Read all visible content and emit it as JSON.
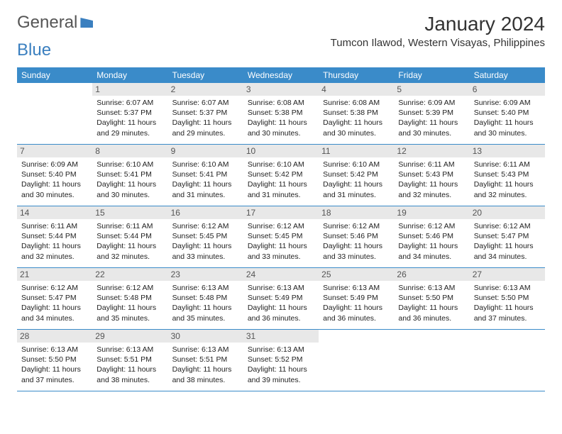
{
  "logo": {
    "part1": "General",
    "part2": "Blue"
  },
  "title": "January 2024",
  "location": "Tumcon Ilawod, Western Visayas, Philippines",
  "colors": {
    "header_bg": "#3a8bc9",
    "header_text": "#ffffff",
    "daynum_bg": "#e8e8e8",
    "border": "#3a8bc9",
    "logo_accent": "#3a7fbf"
  },
  "day_names": [
    "Sunday",
    "Monday",
    "Tuesday",
    "Wednesday",
    "Thursday",
    "Friday",
    "Saturday"
  ],
  "weeks": [
    [
      {
        "num": "",
        "lines": [
          "",
          "",
          "",
          ""
        ]
      },
      {
        "num": "1",
        "lines": [
          "Sunrise: 6:07 AM",
          "Sunset: 5:37 PM",
          "Daylight: 11 hours",
          "and 29 minutes."
        ]
      },
      {
        "num": "2",
        "lines": [
          "Sunrise: 6:07 AM",
          "Sunset: 5:37 PM",
          "Daylight: 11 hours",
          "and 29 minutes."
        ]
      },
      {
        "num": "3",
        "lines": [
          "Sunrise: 6:08 AM",
          "Sunset: 5:38 PM",
          "Daylight: 11 hours",
          "and 30 minutes."
        ]
      },
      {
        "num": "4",
        "lines": [
          "Sunrise: 6:08 AM",
          "Sunset: 5:38 PM",
          "Daylight: 11 hours",
          "and 30 minutes."
        ]
      },
      {
        "num": "5",
        "lines": [
          "Sunrise: 6:09 AM",
          "Sunset: 5:39 PM",
          "Daylight: 11 hours",
          "and 30 minutes."
        ]
      },
      {
        "num": "6",
        "lines": [
          "Sunrise: 6:09 AM",
          "Sunset: 5:40 PM",
          "Daylight: 11 hours",
          "and 30 minutes."
        ]
      }
    ],
    [
      {
        "num": "7",
        "lines": [
          "Sunrise: 6:09 AM",
          "Sunset: 5:40 PM",
          "Daylight: 11 hours",
          "and 30 minutes."
        ]
      },
      {
        "num": "8",
        "lines": [
          "Sunrise: 6:10 AM",
          "Sunset: 5:41 PM",
          "Daylight: 11 hours",
          "and 30 minutes."
        ]
      },
      {
        "num": "9",
        "lines": [
          "Sunrise: 6:10 AM",
          "Sunset: 5:41 PM",
          "Daylight: 11 hours",
          "and 31 minutes."
        ]
      },
      {
        "num": "10",
        "lines": [
          "Sunrise: 6:10 AM",
          "Sunset: 5:42 PM",
          "Daylight: 11 hours",
          "and 31 minutes."
        ]
      },
      {
        "num": "11",
        "lines": [
          "Sunrise: 6:10 AM",
          "Sunset: 5:42 PM",
          "Daylight: 11 hours",
          "and 31 minutes."
        ]
      },
      {
        "num": "12",
        "lines": [
          "Sunrise: 6:11 AM",
          "Sunset: 5:43 PM",
          "Daylight: 11 hours",
          "and 32 minutes."
        ]
      },
      {
        "num": "13",
        "lines": [
          "Sunrise: 6:11 AM",
          "Sunset: 5:43 PM",
          "Daylight: 11 hours",
          "and 32 minutes."
        ]
      }
    ],
    [
      {
        "num": "14",
        "lines": [
          "Sunrise: 6:11 AM",
          "Sunset: 5:44 PM",
          "Daylight: 11 hours",
          "and 32 minutes."
        ]
      },
      {
        "num": "15",
        "lines": [
          "Sunrise: 6:11 AM",
          "Sunset: 5:44 PM",
          "Daylight: 11 hours",
          "and 32 minutes."
        ]
      },
      {
        "num": "16",
        "lines": [
          "Sunrise: 6:12 AM",
          "Sunset: 5:45 PM",
          "Daylight: 11 hours",
          "and 33 minutes."
        ]
      },
      {
        "num": "17",
        "lines": [
          "Sunrise: 6:12 AM",
          "Sunset: 5:45 PM",
          "Daylight: 11 hours",
          "and 33 minutes."
        ]
      },
      {
        "num": "18",
        "lines": [
          "Sunrise: 6:12 AM",
          "Sunset: 5:46 PM",
          "Daylight: 11 hours",
          "and 33 minutes."
        ]
      },
      {
        "num": "19",
        "lines": [
          "Sunrise: 6:12 AM",
          "Sunset: 5:46 PM",
          "Daylight: 11 hours",
          "and 34 minutes."
        ]
      },
      {
        "num": "20",
        "lines": [
          "Sunrise: 6:12 AM",
          "Sunset: 5:47 PM",
          "Daylight: 11 hours",
          "and 34 minutes."
        ]
      }
    ],
    [
      {
        "num": "21",
        "lines": [
          "Sunrise: 6:12 AM",
          "Sunset: 5:47 PM",
          "Daylight: 11 hours",
          "and 34 minutes."
        ]
      },
      {
        "num": "22",
        "lines": [
          "Sunrise: 6:12 AM",
          "Sunset: 5:48 PM",
          "Daylight: 11 hours",
          "and 35 minutes."
        ]
      },
      {
        "num": "23",
        "lines": [
          "Sunrise: 6:13 AM",
          "Sunset: 5:48 PM",
          "Daylight: 11 hours",
          "and 35 minutes."
        ]
      },
      {
        "num": "24",
        "lines": [
          "Sunrise: 6:13 AM",
          "Sunset: 5:49 PM",
          "Daylight: 11 hours",
          "and 36 minutes."
        ]
      },
      {
        "num": "25",
        "lines": [
          "Sunrise: 6:13 AM",
          "Sunset: 5:49 PM",
          "Daylight: 11 hours",
          "and 36 minutes."
        ]
      },
      {
        "num": "26",
        "lines": [
          "Sunrise: 6:13 AM",
          "Sunset: 5:50 PM",
          "Daylight: 11 hours",
          "and 36 minutes."
        ]
      },
      {
        "num": "27",
        "lines": [
          "Sunrise: 6:13 AM",
          "Sunset: 5:50 PM",
          "Daylight: 11 hours",
          "and 37 minutes."
        ]
      }
    ],
    [
      {
        "num": "28",
        "lines": [
          "Sunrise: 6:13 AM",
          "Sunset: 5:50 PM",
          "Daylight: 11 hours",
          "and 37 minutes."
        ]
      },
      {
        "num": "29",
        "lines": [
          "Sunrise: 6:13 AM",
          "Sunset: 5:51 PM",
          "Daylight: 11 hours",
          "and 38 minutes."
        ]
      },
      {
        "num": "30",
        "lines": [
          "Sunrise: 6:13 AM",
          "Sunset: 5:51 PM",
          "Daylight: 11 hours",
          "and 38 minutes."
        ]
      },
      {
        "num": "31",
        "lines": [
          "Sunrise: 6:13 AM",
          "Sunset: 5:52 PM",
          "Daylight: 11 hours",
          "and 39 minutes."
        ]
      },
      {
        "num": "",
        "lines": [
          "",
          "",
          "",
          ""
        ]
      },
      {
        "num": "",
        "lines": [
          "",
          "",
          "",
          ""
        ]
      },
      {
        "num": "",
        "lines": [
          "",
          "",
          "",
          ""
        ]
      }
    ]
  ]
}
